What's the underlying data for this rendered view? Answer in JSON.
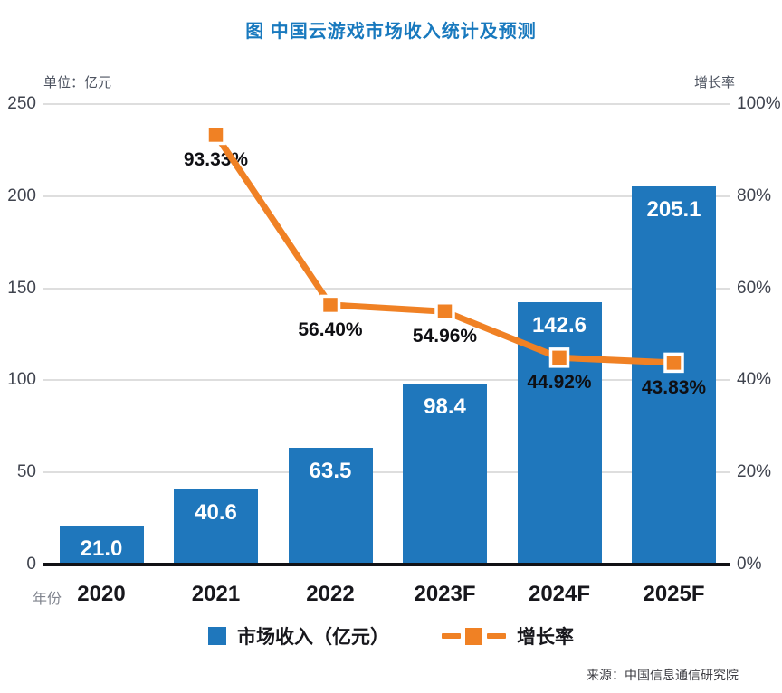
{
  "title": "图  中国云游戏市场收入统计及预测",
  "axes": {
    "left_unit": "单位：亿元",
    "right_unit": "增长率",
    "x_label": "年份",
    "left_ticks": [
      "250",
      "200",
      "150",
      "100",
      "50",
      "0"
    ],
    "right_ticks": [
      "100%",
      "80%",
      "60%",
      "40%",
      "20%",
      "0%"
    ]
  },
  "legend": {
    "bar_label": "市场收入（亿元）",
    "line_label": "增长率"
  },
  "source": "来源：中国信息通信研究院",
  "colors": {
    "bar": "#1F77BC",
    "line": "#F08124",
    "title": "#1879BE",
    "axis_line": "#121216",
    "gridline": "#dedede"
  },
  "chart_data": {
    "type": "bar+line combo",
    "title": "图 中国云游戏市场收入统计及预测",
    "categories": [
      "2020",
      "2021",
      "2022",
      "2023F",
      "2024F",
      "2025F"
    ],
    "series": [
      {
        "name": "市场收入（亿元）",
        "type": "bar",
        "axis": "left",
        "values": [
          21.0,
          40.6,
          63.5,
          98.4,
          142.6,
          205.1
        ],
        "labels": [
          "21.0",
          "40.6",
          "63.5",
          "98.4",
          "142.6",
          "205.1"
        ]
      },
      {
        "name": "增长率",
        "type": "line",
        "axis": "right",
        "values": [
          null,
          93.33,
          56.4,
          54.96,
          44.92,
          43.83
        ],
        "labels": [
          null,
          "93.33%",
          "56.40%",
          "54.96%",
          "44.92%",
          "43.83%"
        ]
      }
    ],
    "left_ylim": [
      0,
      250
    ],
    "right_ylim": [
      0,
      100
    ],
    "left_axis_label": "单位：亿元",
    "right_axis_label": "增长率",
    "xlabel": "年份",
    "grid": true,
    "legend_position": "bottom",
    "source": "来源：中国信息通信研究院"
  }
}
